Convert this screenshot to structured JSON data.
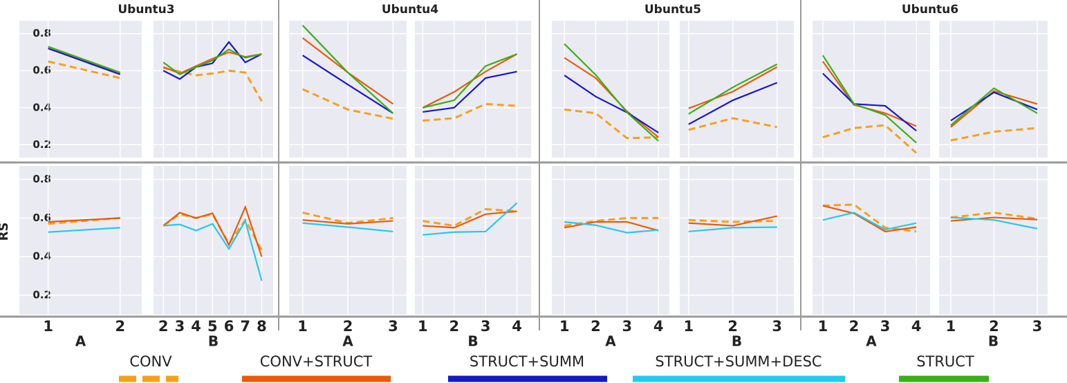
{
  "chart_data": [
    {
      "type": "line",
      "title": "Ubuntu3",
      "x": [
        1,
        2
      ],
      "xlim": [
        0.6,
        2.3
      ],
      "ylim": [
        0.13,
        0.87
      ],
      "yticks": [
        0.2,
        0.4,
        0.6,
        0.8
      ],
      "grid": true,
      "series": [
        {
          "name": "CONV",
          "color": "#f5a01c",
          "dashed": true,
          "values": [
            0.65,
            0.56
          ]
        },
        {
          "name": "CONV+STRUCT",
          "color": "#ea5a0c",
          "values": [
            0.72,
            0.59
          ]
        },
        {
          "name": "STRUCT+SUMM",
          "color": "#1717cc",
          "values": [
            0.72,
            0.58
          ]
        },
        {
          "name": "STRUCT",
          "color": "#3bae1a",
          "values": [
            0.73,
            0.59
          ]
        }
      ]
    },
    {
      "type": "line",
      "x": [
        2,
        3,
        4,
        5,
        6,
        7,
        8
      ],
      "xlim": [
        1.4,
        8.7
      ],
      "ylim": [
        0.13,
        0.87
      ],
      "yticks": [
        0.2,
        0.4,
        0.6,
        0.8
      ],
      "grid": true,
      "series": [
        {
          "name": "CONV",
          "color": "#f5a01c",
          "dashed": true,
          "values": [
            0.615,
            0.595,
            0.575,
            0.585,
            0.6,
            0.59,
            0.435
          ]
        },
        {
          "name": "CONV+STRUCT",
          "color": "#ea5a0c",
          "values": [
            0.62,
            0.585,
            0.625,
            0.665,
            0.7,
            0.675,
            0.69
          ]
        },
        {
          "name": "STRUCT+SUMM",
          "color": "#1717cc",
          "values": [
            0.6,
            0.555,
            0.62,
            0.64,
            0.755,
            0.645,
            0.69
          ]
        },
        {
          "name": "STRUCT",
          "color": "#3bae1a",
          "values": [
            0.645,
            0.58,
            0.62,
            0.655,
            0.715,
            0.67,
            0.69
          ]
        }
      ]
    },
    {
      "type": "line",
      "title": "Ubuntu4",
      "x": [
        1,
        2,
        3
      ],
      "xlim": [
        0.7,
        3.3
      ],
      "ylim": [
        0.13,
        0.87
      ],
      "yticks": [
        0.2,
        0.4,
        0.6,
        0.8
      ],
      "grid": true,
      "series": [
        {
          "name": "CONV",
          "color": "#f5a01c",
          "dashed": true,
          "values": [
            0.5,
            0.39,
            0.34
          ]
        },
        {
          "name": "CONV+STRUCT",
          "color": "#ea5a0c",
          "values": [
            0.777,
            0.59,
            0.42
          ]
        },
        {
          "name": "STRUCT+SUMM",
          "color": "#1717cc",
          "values": [
            0.683,
            0.525,
            0.37
          ]
        },
        {
          "name": "STRUCT",
          "color": "#3bae1a",
          "values": [
            0.845,
            0.59,
            0.37
          ]
        }
      ]
    },
    {
      "type": "line",
      "x": [
        1,
        2,
        3,
        4
      ],
      "xlim": [
        0.75,
        4.45
      ],
      "ylim": [
        0.13,
        0.87
      ],
      "yticks": [
        0.2,
        0.4,
        0.6,
        0.8
      ],
      "grid": true,
      "series": [
        {
          "name": "CONV",
          "color": "#f5a01c",
          "dashed": true,
          "values": [
            0.33,
            0.343,
            0.42,
            0.41
          ]
        },
        {
          "name": "CONV+STRUCT",
          "color": "#ea5a0c",
          "values": [
            0.4,
            0.485,
            0.595,
            0.69
          ]
        },
        {
          "name": "STRUCT+SUMM",
          "color": "#1717cc",
          "values": [
            0.377,
            0.4,
            0.56,
            0.595
          ]
        },
        {
          "name": "STRUCT",
          "color": "#3bae1a",
          "values": [
            0.4,
            0.44,
            0.625,
            0.69
          ]
        }
      ]
    },
    {
      "type": "line",
      "title": "Ubuntu5",
      "x": [
        1,
        2,
        3,
        4
      ],
      "xlim": [
        0.6,
        4.35
      ],
      "ylim": [
        0.13,
        0.87
      ],
      "yticks": [
        0.2,
        0.4,
        0.6,
        0.8
      ],
      "grid": true,
      "series": [
        {
          "name": "CONV",
          "color": "#f5a01c",
          "dashed": true,
          "values": [
            0.39,
            0.37,
            0.235,
            0.24
          ]
        },
        {
          "name": "CONV+STRUCT",
          "color": "#ea5a0c",
          "values": [
            0.67,
            0.56,
            0.38,
            0.24
          ]
        },
        {
          "name": "STRUCT+SUMM",
          "color": "#1717cc",
          "values": [
            0.575,
            0.46,
            0.374,
            0.265
          ]
        },
        {
          "name": "STRUCT",
          "color": "#3bae1a",
          "values": [
            0.745,
            0.577,
            0.374,
            0.22
          ]
        }
      ]
    },
    {
      "type": "line",
      "x": [
        1,
        2,
        3
      ],
      "xlim": [
        0.8,
        3.38
      ],
      "ylim": [
        0.13,
        0.87
      ],
      "yticks": [
        0.2,
        0.4,
        0.6,
        0.8
      ],
      "grid": true,
      "series": [
        {
          "name": "CONV",
          "color": "#f5a01c",
          "dashed": true,
          "values": [
            0.28,
            0.343,
            0.295
          ]
        },
        {
          "name": "CONV+STRUCT",
          "color": "#ea5a0c",
          "values": [
            0.396,
            0.487,
            0.62
          ]
        },
        {
          "name": "STRUCT+SUMM",
          "color": "#1717cc",
          "values": [
            0.31,
            0.44,
            0.535
          ]
        },
        {
          "name": "STRUCT",
          "color": "#3bae1a",
          "values": [
            0.366,
            0.51,
            0.635
          ]
        }
      ]
    },
    {
      "type": "line",
      "title": "Ubuntu6",
      "x": [
        1,
        2,
        3,
        4
      ],
      "xlim": [
        0.67,
        4.44
      ],
      "ylim": [
        0.13,
        0.87
      ],
      "yticks": [
        0.2,
        0.4,
        0.6,
        0.8
      ],
      "grid": true,
      "series": [
        {
          "name": "CONV",
          "color": "#f5a01c",
          "dashed": true,
          "values": [
            0.24,
            0.29,
            0.305,
            0.155
          ]
        },
        {
          "name": "CONV+STRUCT",
          "color": "#ea5a0c",
          "values": [
            0.65,
            0.415,
            0.37,
            0.3
          ]
        },
        {
          "name": "STRUCT+SUMM",
          "color": "#1717cc",
          "values": [
            0.585,
            0.42,
            0.41,
            0.275
          ]
        },
        {
          "name": "STRUCT",
          "color": "#3bae1a",
          "values": [
            0.683,
            0.42,
            0.36,
            0.21
          ]
        }
      ]
    },
    {
      "type": "line",
      "x": [
        1,
        2,
        3
      ],
      "xlim": [
        0.73,
        3.24
      ],
      "ylim": [
        0.13,
        0.87
      ],
      "yticks": [
        0.2,
        0.4,
        0.6,
        0.8
      ],
      "grid": true,
      "series": [
        {
          "name": "CONV",
          "color": "#f5a01c",
          "dashed": true,
          "values": [
            0.223,
            0.27,
            0.29
          ]
        },
        {
          "name": "CONV+STRUCT",
          "color": "#ea5a0c",
          "values": [
            0.295,
            0.49,
            0.42
          ]
        },
        {
          "name": "STRUCT+SUMM",
          "color": "#1717cc",
          "values": [
            0.33,
            0.483,
            0.39
          ]
        },
        {
          "name": "STRUCT",
          "color": "#3bae1a",
          "values": [
            0.305,
            0.505,
            0.37
          ]
        }
      ]
    },
    {
      "type": "line",
      "y_label": "RS",
      "x_label": "A",
      "x": [
        1,
        2
      ],
      "xlim": [
        0.6,
        2.3
      ],
      "ylim": [
        0.1,
        0.87
      ],
      "yticks": [
        0.2,
        0.4,
        0.6,
        0.8
      ],
      "grid": true,
      "series": [
        {
          "name": "CONV",
          "color": "#f5a01c",
          "dashed": true,
          "values": [
            0.57,
            0.6
          ]
        },
        {
          "name": "CONV+STRUCT",
          "color": "#ea5a0c",
          "values": [
            0.58,
            0.6
          ]
        },
        {
          "name": "STRUCT+SUMM+DESC",
          "color": "#25c8ef",
          "values": [
            0.527,
            0.55
          ]
        }
      ]
    },
    {
      "type": "line",
      "x_label": "B",
      "x": [
        2,
        3,
        4,
        5,
        6,
        7,
        8
      ],
      "xlim": [
        1.4,
        8.7
      ],
      "ylim": [
        0.1,
        0.87
      ],
      "yticks": [
        0.2,
        0.4,
        0.6,
        0.8
      ],
      "grid": true,
      "series": [
        {
          "name": "CONV",
          "color": "#f5a01c",
          "dashed": true,
          "values": [
            0.56,
            0.62,
            0.6,
            0.62,
            0.466,
            0.59,
            0.434
          ]
        },
        {
          "name": "CONV+STRUCT",
          "color": "#ea5a0c",
          "values": [
            0.56,
            0.628,
            0.6,
            0.625,
            0.46,
            0.657,
            0.4
          ]
        },
        {
          "name": "STRUCT+SUMM+DESC",
          "color": "#25c8ef",
          "values": [
            0.56,
            0.567,
            0.535,
            0.57,
            0.44,
            0.585,
            0.275
          ]
        }
      ]
    },
    {
      "type": "line",
      "x_label": "A",
      "x": [
        1,
        2,
        3
      ],
      "xlim": [
        0.7,
        3.3
      ],
      "ylim": [
        0.1,
        0.87
      ],
      "yticks": [
        0.2,
        0.4,
        0.6,
        0.8
      ],
      "grid": true,
      "series": [
        {
          "name": "CONV",
          "color": "#f5a01c",
          "dashed": true,
          "values": [
            0.628,
            0.574,
            0.6
          ]
        },
        {
          "name": "CONV+STRUCT",
          "color": "#ea5a0c",
          "values": [
            0.59,
            0.57,
            0.585
          ]
        },
        {
          "name": "STRUCT+SUMM+DESC",
          "color": "#25c8ef",
          "values": [
            0.574,
            0.553,
            0.53
          ]
        }
      ]
    },
    {
      "type": "line",
      "x_label": "B",
      "x": [
        1,
        2,
        3,
        4
      ],
      "xlim": [
        0.75,
        4.45
      ],
      "ylim": [
        0.1,
        0.87
      ],
      "yticks": [
        0.2,
        0.4,
        0.6,
        0.8
      ],
      "grid": true,
      "series": [
        {
          "name": "CONV",
          "color": "#f5a01c",
          "dashed": true,
          "values": [
            0.585,
            0.56,
            0.646,
            0.635
          ]
        },
        {
          "name": "CONV+STRUCT",
          "color": "#ea5a0c",
          "values": [
            0.56,
            0.55,
            0.62,
            0.635
          ]
        },
        {
          "name": "STRUCT+SUMM+DESC",
          "color": "#25c8ef",
          "values": [
            0.513,
            0.527,
            0.53,
            0.678
          ]
        }
      ]
    },
    {
      "type": "line",
      "x_label": "A",
      "x": [
        1,
        2,
        3,
        4
      ],
      "xlim": [
        0.6,
        4.35
      ],
      "ylim": [
        0.1,
        0.87
      ],
      "yticks": [
        0.2,
        0.4,
        0.6,
        0.8
      ],
      "grid": true,
      "series": [
        {
          "name": "CONV",
          "color": "#f5a01c",
          "dashed": true,
          "values": [
            0.56,
            0.585,
            0.6,
            0.6
          ]
        },
        {
          "name": "CONV+STRUCT",
          "color": "#ea5a0c",
          "values": [
            0.55,
            0.58,
            0.58,
            0.535
          ]
        },
        {
          "name": "STRUCT+SUMM+DESC",
          "color": "#25c8ef",
          "values": [
            0.58,
            0.563,
            0.524,
            0.538
          ]
        }
      ]
    },
    {
      "type": "line",
      "x_label": "B",
      "x": [
        1,
        2,
        3
      ],
      "xlim": [
        0.8,
        3.38
      ],
      "ylim": [
        0.1,
        0.87
      ],
      "yticks": [
        0.2,
        0.4,
        0.6,
        0.8
      ],
      "grid": true,
      "series": [
        {
          "name": "CONV",
          "color": "#f5a01c",
          "dashed": true,
          "values": [
            0.59,
            0.58,
            0.585
          ]
        },
        {
          "name": "CONV+STRUCT",
          "color": "#ea5a0c",
          "values": [
            0.574,
            0.56,
            0.61
          ]
        },
        {
          "name": "STRUCT+SUMM+DESC",
          "color": "#25c8ef",
          "values": [
            0.53,
            0.55,
            0.553
          ]
        }
      ]
    },
    {
      "type": "line",
      "x_label": "A",
      "x": [
        1,
        2,
        3,
        4
      ],
      "xlim": [
        0.67,
        4.44
      ],
      "ylim": [
        0.1,
        0.87
      ],
      "yticks": [
        0.2,
        0.4,
        0.6,
        0.8
      ],
      "grid": true,
      "series": [
        {
          "name": "CONV",
          "color": "#f5a01c",
          "dashed": true,
          "values": [
            0.664,
            0.67,
            0.55,
            0.53
          ]
        },
        {
          "name": "CONV+STRUCT",
          "color": "#ea5a0c",
          "values": [
            0.664,
            0.624,
            0.53,
            0.553
          ]
        },
        {
          "name": "STRUCT+SUMM+DESC",
          "color": "#25c8ef",
          "values": [
            0.59,
            0.628,
            0.54,
            0.574
          ]
        }
      ]
    },
    {
      "type": "line",
      "x_label": "B",
      "x": [
        1,
        2,
        3
      ],
      "xlim": [
        0.73,
        3.24
      ],
      "ylim": [
        0.1,
        0.87
      ],
      "yticks": [
        0.2,
        0.4,
        0.6,
        0.8
      ],
      "grid": true,
      "series": [
        {
          "name": "CONV",
          "color": "#f5a01c",
          "dashed": true,
          "values": [
            0.603,
            0.628,
            0.596
          ]
        },
        {
          "name": "CONV+STRUCT",
          "color": "#ea5a0c",
          "values": [
            0.585,
            0.603,
            0.592
          ]
        },
        {
          "name": "STRUCT+SUMM+DESC",
          "color": "#25c8ef",
          "values": [
            0.603,
            0.59,
            0.545
          ]
        }
      ]
    }
  ],
  "legend": [
    {
      "name": "CONV",
      "color": "#f5a01c",
      "dashed": true
    },
    {
      "name": "CONV+STRUCT",
      "color": "#ea5a0c"
    },
    {
      "name": "STRUCT+SUMM",
      "color": "#1717cc"
    },
    {
      "name": "STRUCT+SUMM+DESC",
      "color": "#25c8ef"
    },
    {
      "name": "STRUCT",
      "color": "#3bae1a"
    }
  ]
}
